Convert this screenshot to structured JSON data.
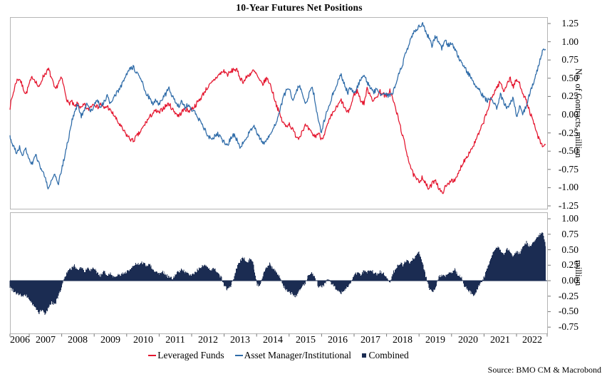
{
  "title": "10-Year Futures Net Positions",
  "source": "Source: BMO CM & Macrobond",
  "colors": {
    "leveraged_funds": "#e4152e",
    "asset_manager": "#2e6ba8",
    "combined": "#1b2c52",
    "panel_border": "#b5b5b5",
    "tick": "#777777"
  },
  "axes": {
    "year_labels": [
      "2006",
      "2007",
      "2008",
      "2009",
      "2010",
      "2011",
      "2012",
      "2013",
      "2014",
      "2015",
      "2016",
      "2017",
      "2018",
      "2019",
      "2020",
      "2021",
      "2022"
    ]
  },
  "chart_data": [
    {
      "type": "line",
      "title": "10-Year Futures Net Positions",
      "xlabel": "",
      "ylabel": "No. of Contracts, million",
      "x_start": 2006.4,
      "x_step": 0.1,
      "xlim": [
        2006.4,
        2022.9
      ],
      "ylim": [
        -1.29,
        1.34
      ],
      "grid": false,
      "legend_position": "bottom",
      "ytick_labels": [
        "1.25",
        "1.00",
        "0.75",
        "0.50",
        "0.25",
        "0.00",
        "-0.25",
        "-0.50",
        "-0.75",
        "-1.00",
        "-1.25"
      ],
      "series": [
        {
          "name": "Leveraged Funds",
          "color": "#e4152e",
          "values": [
            0.1,
            0.28,
            0.46,
            0.5,
            0.38,
            0.28,
            0.42,
            0.52,
            0.46,
            0.36,
            0.5,
            0.57,
            0.62,
            0.48,
            0.33,
            0.44,
            0.5,
            0.32,
            0.15,
            0.18,
            0.1,
            0.16,
            0.08,
            0.14,
            0.06,
            0.12,
            0.16,
            0.1,
            0.15,
            0.08,
            0.12,
            0.05,
            0.0,
            -0.08,
            -0.15,
            -0.22,
            -0.28,
            -0.33,
            -0.36,
            -0.3,
            -0.25,
            -0.18,
            -0.1,
            -0.04,
            0.02,
            0.05,
            0.02,
            0.08,
            0.12,
            0.15,
            0.08,
            0.03,
            -0.02,
            0.04,
            0.08,
            0.05,
            0.08,
            0.12,
            0.18,
            0.24,
            0.32,
            0.38,
            0.42,
            0.48,
            0.53,
            0.57,
            0.6,
            0.55,
            0.58,
            0.63,
            0.6,
            0.5,
            0.45,
            0.52,
            0.56,
            0.6,
            0.55,
            0.45,
            0.42,
            0.5,
            0.44,
            0.3,
            0.15,
            0.02,
            -0.1,
            -0.16,
            -0.12,
            -0.2,
            -0.28,
            -0.32,
            -0.22,
            -0.15,
            -0.2,
            -0.26,
            -0.3,
            -0.25,
            -0.33,
            -0.25,
            -0.12,
            -0.02,
            0.06,
            0.12,
            0.2,
            0.1,
            0.02,
            0.12,
            0.28,
            0.33,
            0.2,
            0.15,
            0.35,
            0.28,
            0.18,
            0.25,
            0.32,
            0.28,
            0.24,
            0.34,
            0.2,
            0.05,
            -0.12,
            -0.3,
            -0.48,
            -0.65,
            -0.8,
            -0.88,
            -0.92,
            -0.85,
            -0.95,
            -1.02,
            -0.95,
            -0.88,
            -1.0,
            -1.08,
            -1.0,
            -0.95,
            -0.88,
            -0.92,
            -0.82,
            -0.7,
            -0.62,
            -0.55,
            -0.48,
            -0.4,
            -0.3,
            -0.2,
            -0.08,
            0.05,
            0.18,
            0.3,
            0.38,
            0.45,
            0.32,
            0.42,
            0.5,
            0.38,
            0.48,
            0.42,
            0.3,
            0.18,
            0.05,
            -0.08,
            -0.22,
            -0.35,
            -0.44,
            -0.4
          ]
        },
        {
          "name": "Asset Manager/Institutional",
          "color": "#2e6ba8",
          "values": [
            -0.3,
            -0.42,
            -0.52,
            -0.45,
            -0.55,
            -0.48,
            -0.6,
            -0.68,
            -0.55,
            -0.65,
            -0.78,
            -0.88,
            -1.02,
            -0.9,
            -0.82,
            -0.95,
            -0.75,
            -0.55,
            -0.35,
            -0.12,
            0.05,
            0.15,
            -0.02,
            0.08,
            0.15,
            0.05,
            0.12,
            0.2,
            0.1,
            0.18,
            0.25,
            0.15,
            0.22,
            0.3,
            0.38,
            0.45,
            0.55,
            0.62,
            0.65,
            0.58,
            0.5,
            0.42,
            0.3,
            0.22,
            0.15,
            0.2,
            0.15,
            0.22,
            0.28,
            0.36,
            0.25,
            0.18,
            0.12,
            0.18,
            0.1,
            0.15,
            0.08,
            0.02,
            -0.05,
            -0.12,
            -0.2,
            -0.28,
            -0.35,
            -0.3,
            -0.25,
            -0.32,
            -0.38,
            -0.42,
            -0.32,
            -0.28,
            -0.35,
            -0.45,
            -0.38,
            -0.3,
            -0.22,
            -0.15,
            -0.25,
            -0.32,
            -0.4,
            -0.35,
            -0.28,
            -0.2,
            -0.1,
            0.05,
            0.2,
            0.32,
            0.36,
            0.18,
            0.28,
            0.42,
            0.3,
            0.12,
            0.25,
            0.4,
            0.2,
            -0.1,
            -0.25,
            -0.05,
            0.1,
            0.22,
            0.35,
            0.45,
            0.55,
            0.42,
            0.3,
            0.38,
            0.3,
            0.38,
            0.48,
            0.55,
            0.45,
            0.38,
            0.3,
            0.35,
            0.28,
            0.32,
            0.28,
            0.25,
            0.32,
            0.45,
            0.58,
            0.7,
            0.85,
            0.98,
            1.1,
            1.16,
            1.2,
            1.25,
            1.15,
            1.05,
            0.95,
            1.08,
            1.0,
            0.9,
            1.02,
            0.95,
            1.0,
            0.9,
            0.8,
            0.72,
            0.65,
            0.58,
            0.5,
            0.42,
            0.38,
            0.3,
            0.25,
            0.18,
            0.25,
            0.15,
            0.1,
            0.28,
            0.18,
            0.08,
            0.15,
            0.25,
            -0.02,
            0.1,
            0.02,
            0.12,
            0.28,
            0.42,
            0.55,
            0.7,
            0.88,
            0.9
          ]
        }
      ]
    },
    {
      "type": "bar",
      "title": "",
      "xlabel": "",
      "ylabel": "million",
      "x_start": 2006.4,
      "x_step": 0.1,
      "xlim": [
        2006.4,
        2022.9
      ],
      "ylim": [
        -0.85,
        1.1
      ],
      "grid": false,
      "ytick_labels": [
        "1.00",
        "0.75",
        "0.50",
        "0.25",
        "0.00",
        "-0.25",
        "-0.50",
        "-0.75"
      ],
      "series": [
        {
          "name": "Combined",
          "color": "#1b2c52",
          "values": [
            -0.1,
            -0.15,
            -0.2,
            -0.22,
            -0.26,
            -0.24,
            -0.3,
            -0.38,
            -0.45,
            -0.52,
            -0.48,
            -0.55,
            -0.42,
            -0.35,
            -0.38,
            -0.25,
            -0.1,
            0.08,
            0.15,
            0.2,
            0.24,
            0.18,
            0.22,
            0.15,
            0.2,
            0.16,
            0.2,
            0.12,
            0.08,
            0.14,
            0.1,
            0.12,
            0.06,
            0.1,
            0.08,
            0.12,
            0.15,
            0.18,
            0.22,
            0.28,
            0.25,
            0.3,
            0.24,
            0.28,
            0.18,
            0.14,
            0.12,
            0.16,
            0.1,
            0.06,
            0.03,
            0.1,
            0.15,
            0.18,
            0.14,
            0.1,
            0.08,
            0.14,
            0.18,
            0.22,
            0.25,
            0.2,
            0.16,
            0.2,
            0.14,
            0.06,
            -0.08,
            -0.14,
            -0.1,
            0.05,
            0.22,
            0.32,
            0.38,
            0.3,
            0.34,
            0.28,
            -0.05,
            -0.1,
            0.12,
            0.22,
            0.28,
            0.2,
            0.15,
            0.08,
            -0.06,
            -0.14,
            -0.18,
            -0.22,
            -0.25,
            -0.18,
            -0.1,
            -0.04,
            0.08,
            0.12,
            0.04,
            -0.08,
            -0.1,
            -0.06,
            0.04,
            -0.04,
            -0.1,
            -0.15,
            -0.2,
            -0.14,
            -0.1,
            -0.04,
            0.08,
            0.14,
            0.1,
            0.16,
            0.12,
            0.18,
            0.14,
            0.1,
            0.16,
            0.12,
            0.08,
            -0.05,
            0.12,
            0.22,
            0.28,
            0.25,
            0.32,
            0.28,
            0.35,
            0.4,
            0.45,
            0.3,
            0.1,
            -0.12,
            -0.18,
            -0.14,
            0.05,
            0.1,
            0.06,
            0.1,
            0.14,
            0.18,
            0.1,
            0.05,
            -0.08,
            -0.15,
            -0.2,
            -0.24,
            -0.12,
            -0.05,
            0.06,
            0.2,
            0.35,
            0.48,
            0.55,
            0.5,
            0.42,
            0.52,
            0.46,
            0.4,
            0.48,
            0.44,
            0.54,
            0.62,
            0.55,
            0.6,
            0.68,
            0.74,
            0.8,
            0.55
          ]
        }
      ]
    }
  ]
}
